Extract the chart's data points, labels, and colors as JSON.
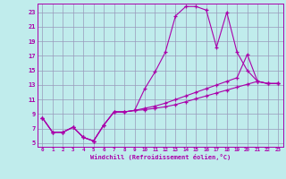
{
  "xlabel": "Windchill (Refroidissement éolien,°C)",
  "bg_color": "#c0ecec",
  "grid_color": "#9999bb",
  "line_color": "#aa00aa",
  "xlim": [
    -0.5,
    23.5
  ],
  "ylim": [
    4.5,
    24.2
  ],
  "xticks": [
    0,
    1,
    2,
    3,
    4,
    5,
    6,
    7,
    8,
    9,
    10,
    11,
    12,
    13,
    14,
    15,
    16,
    17,
    18,
    19,
    20,
    21,
    22,
    23
  ],
  "yticks": [
    5,
    7,
    9,
    11,
    13,
    15,
    17,
    19,
    21,
    23
  ],
  "line1_x": [
    0,
    1,
    2,
    3,
    4,
    5,
    6,
    7,
    8,
    9,
    10,
    11,
    12,
    13,
    14,
    15,
    16,
    17,
    18,
    19,
    20,
    21,
    22,
    23
  ],
  "line1_y": [
    8.5,
    6.5,
    6.5,
    7.2,
    5.8,
    5.3,
    7.5,
    9.3,
    9.3,
    9.5,
    12.5,
    14.8,
    17.5,
    22.5,
    23.8,
    23.8,
    23.3,
    18.2,
    23.0,
    17.5,
    15.0,
    13.5,
    13.2,
    13.2
  ],
  "line2_x": [
    0,
    1,
    2,
    3,
    4,
    5,
    6,
    7,
    8,
    9,
    10,
    11,
    12,
    13,
    14,
    15,
    16,
    17,
    18,
    19,
    20,
    21,
    22,
    23
  ],
  "line2_y": [
    8.5,
    6.5,
    6.5,
    7.2,
    5.8,
    5.3,
    7.5,
    9.3,
    9.3,
    9.5,
    9.8,
    10.1,
    10.5,
    11.0,
    11.5,
    12.0,
    12.5,
    13.0,
    13.5,
    14.0,
    17.2,
    13.5,
    13.2,
    13.2
  ],
  "line3_x": [
    0,
    1,
    2,
    3,
    4,
    5,
    6,
    7,
    8,
    9,
    10,
    11,
    12,
    13,
    14,
    15,
    16,
    17,
    18,
    19,
    20,
    21,
    22,
    23
  ],
  "line3_y": [
    8.5,
    6.5,
    6.5,
    7.2,
    5.8,
    5.3,
    7.5,
    9.3,
    9.3,
    9.5,
    9.6,
    9.8,
    10.0,
    10.3,
    10.7,
    11.1,
    11.5,
    11.9,
    12.3,
    12.7,
    13.1,
    13.5,
    13.2,
    13.2
  ]
}
